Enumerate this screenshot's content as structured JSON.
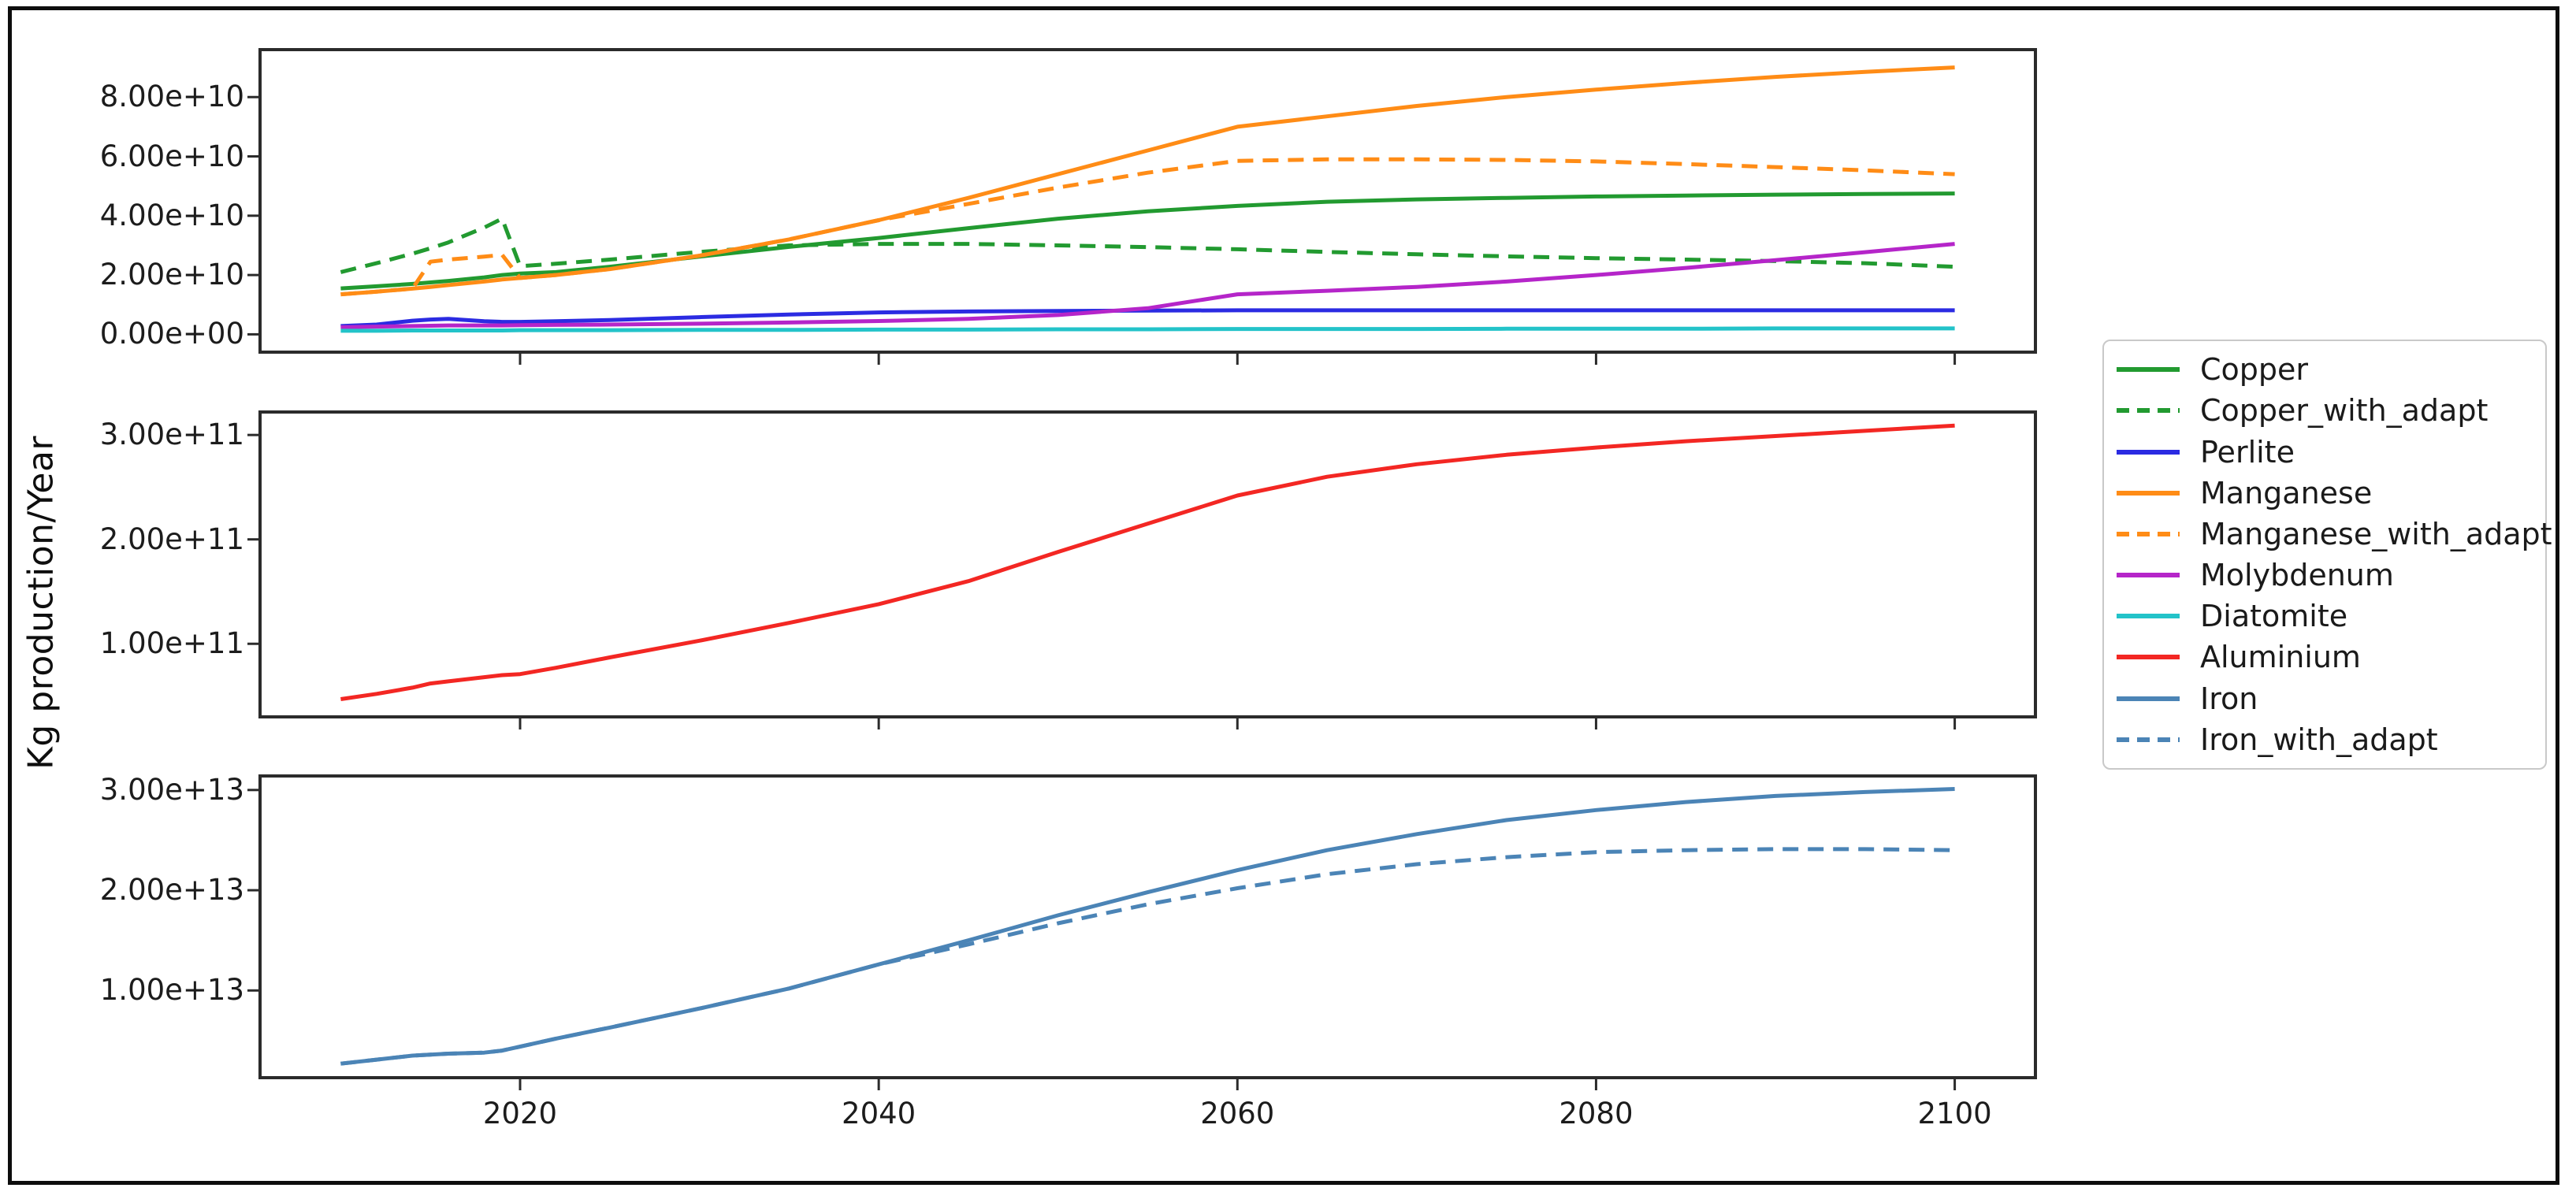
{
  "figure": {
    "ylabel": "Kg production/Year",
    "background_color": "#ffffff",
    "axis_color": "#2b2b2b",
    "tick_label_color": "#1c1c1c"
  },
  "legend": {
    "position": "right",
    "entries": [
      {
        "label": "Copper",
        "color": "#229a30",
        "dash": false
      },
      {
        "label": "Copper_with_adapt",
        "color": "#229a30",
        "dash": true
      },
      {
        "label": "Perlite",
        "color": "#2b2be2",
        "dash": false
      },
      {
        "label": "Manganese",
        "color": "#ff8c16",
        "dash": false
      },
      {
        "label": "Manganese_with_adapt",
        "color": "#ff8c16",
        "dash": true
      },
      {
        "label": "Molybdenum",
        "color": "#b525c9",
        "dash": false
      },
      {
        "label": "Diatomite",
        "color": "#23c3c9",
        "dash": false
      },
      {
        "label": "Aluminium",
        "color": "#f32723",
        "dash": false
      },
      {
        "label": "Iron",
        "color": "#4b84b6",
        "dash": false
      },
      {
        "label": "Iron_with_adapt",
        "color": "#4b84b6",
        "dash": true
      }
    ]
  },
  "chart_data": {
    "type": "line",
    "title": "",
    "xlabel": "",
    "ylabel": "Kg production/Year",
    "x_axis": {
      "range": [
        2005.5,
        2104.5
      ],
      "ticks": [
        2020,
        2040,
        2060,
        2080,
        2100
      ],
      "tick_labels": [
        "2020",
        "2040",
        "2060",
        "2080",
        "2100"
      ]
    },
    "years": [
      2010,
      2012,
      2014,
      2015,
      2016,
      2018,
      2019,
      2020,
      2022,
      2025,
      2030,
      2035,
      2040,
      2045,
      2050,
      2055,
      2060,
      2065,
      2070,
      2075,
      2080,
      2085,
      2090,
      2095,
      2100
    ],
    "subplots": [
      {
        "name": "top-panel",
        "unit": "kg/year",
        "scale": 10000000000.0,
        "ylim": [
          -0.6,
          9.6
        ],
        "yticks": [
          {
            "value": 0,
            "label": "0.00e+00"
          },
          {
            "value": 2,
            "label": "2.00e+10"
          },
          {
            "value": 4,
            "label": "4.00e+10"
          },
          {
            "value": 6,
            "label": "6.00e+10"
          },
          {
            "value": 8,
            "label": "8.00e+10"
          }
        ],
        "series": [
          {
            "name": "Copper",
            "color": "#229a30",
            "dash": false,
            "values": [
              1.55,
              1.62,
              1.7,
              1.75,
              1.8,
              1.92,
              2.0,
              2.05,
              2.1,
              2.28,
              2.62,
              2.95,
              3.25,
              3.58,
              3.9,
              4.15,
              4.33,
              4.47,
              4.55,
              4.6,
              4.65,
              4.68,
              4.71,
              4.73,
              4.75
            ]
          },
          {
            "name": "Copper_with_adapt",
            "color": "#229a30",
            "dash": true,
            "values": [
              2.1,
              2.4,
              2.72,
              2.9,
              3.1,
              3.6,
              3.9,
              2.3,
              2.38,
              2.52,
              2.78,
              3.0,
              3.05,
              3.05,
              3.0,
              2.94,
              2.87,
              2.78,
              2.7,
              2.63,
              2.57,
              2.52,
              2.47,
              2.4,
              2.28
            ]
          },
          {
            "name": "Perlite",
            "color": "#2b2be2",
            "dash": false,
            "values": [
              0.28,
              0.33,
              0.46,
              0.5,
              0.52,
              0.44,
              0.42,
              0.42,
              0.44,
              0.48,
              0.58,
              0.67,
              0.74,
              0.77,
              0.79,
              0.8,
              0.81,
              0.81,
              0.81,
              0.81,
              0.81,
              0.81,
              0.81,
              0.81,
              0.81
            ]
          },
          {
            "name": "Manganese",
            "color": "#ff8c16",
            "dash": false,
            "values": [
              1.35,
              1.44,
              1.54,
              1.6,
              1.66,
              1.78,
              1.85,
              1.9,
              2.0,
              2.2,
              2.65,
              3.2,
              3.85,
              4.6,
              5.4,
              6.2,
              7.0,
              7.35,
              7.7,
              8.0,
              8.25,
              8.48,
              8.68,
              8.85,
              9.0
            ]
          },
          {
            "name": "Manganese_with_adapt",
            "color": "#ff8c16",
            "dash": true,
            "values": [
              1.35,
              1.44,
              1.54,
              2.45,
              2.52,
              2.62,
              2.68,
              1.9,
              2.0,
              2.2,
              2.65,
              3.2,
              3.85,
              4.4,
              4.95,
              5.45,
              5.85,
              5.9,
              5.9,
              5.88,
              5.83,
              5.74,
              5.64,
              5.53,
              5.4
            ]
          },
          {
            "name": "Molybdenum",
            "color": "#b525c9",
            "dash": false,
            "values": [
              0.24,
              0.26,
              0.28,
              0.29,
              0.3,
              0.3,
              0.3,
              0.31,
              0.32,
              0.33,
              0.36,
              0.4,
              0.45,
              0.52,
              0.65,
              0.88,
              1.35,
              1.47,
              1.6,
              1.78,
              2.0,
              2.24,
              2.5,
              2.77,
              3.05
            ]
          },
          {
            "name": "Diatomite",
            "color": "#23c3c9",
            "dash": false,
            "values": [
              0.12,
              0.12,
              0.13,
              0.13,
              0.13,
              0.13,
              0.13,
              0.14,
              0.14,
              0.14,
              0.15,
              0.15,
              0.16,
              0.16,
              0.17,
              0.17,
              0.18,
              0.18,
              0.18,
              0.19,
              0.19,
              0.19,
              0.2,
              0.2,
              0.2
            ]
          }
        ]
      },
      {
        "name": "middle-panel",
        "unit": "kg/year",
        "scale": 100000000000.0,
        "ylim": [
          0.3,
          3.22
        ],
        "yticks": [
          {
            "value": 1,
            "label": "1.00e+11"
          },
          {
            "value": 2,
            "label": "2.00e+11"
          },
          {
            "value": 3,
            "label": "3.00e+11"
          }
        ],
        "series": [
          {
            "name": "Aluminium",
            "color": "#f32723",
            "dash": false,
            "values": [
              0.47,
              0.52,
              0.58,
              0.62,
              0.64,
              0.68,
              0.7,
              0.71,
              0.77,
              0.87,
              1.03,
              1.2,
              1.38,
              1.6,
              1.88,
              2.15,
              2.42,
              2.6,
              2.72,
              2.81,
              2.88,
              2.94,
              2.99,
              3.04,
              3.09
            ]
          }
        ]
      },
      {
        "name": "bottom-panel",
        "unit": "kg/year",
        "scale": 10000000000000.0,
        "ylim": [
          0.13,
          3.14
        ],
        "yticks": [
          {
            "value": 1,
            "label": "1.00e+13"
          },
          {
            "value": 2,
            "label": "2.00e+13"
          },
          {
            "value": 3,
            "label": "3.00e+13"
          }
        ],
        "series": [
          {
            "name": "Iron",
            "color": "#4b84b6",
            "dash": false,
            "values": [
              0.27,
              0.31,
              0.35,
              0.36,
              0.37,
              0.38,
              0.4,
              0.44,
              0.52,
              0.63,
              0.82,
              1.02,
              1.26,
              1.5,
              1.75,
              1.98,
              2.2,
              2.4,
              2.56,
              2.7,
              2.8,
              2.88,
              2.94,
              2.98,
              3.01
            ]
          },
          {
            "name": "Iron_with_adapt",
            "color": "#4b84b6",
            "dash": true,
            "values": [
              0.27,
              0.31,
              0.35,
              0.36,
              0.37,
              0.38,
              0.4,
              0.44,
              0.52,
              0.63,
              0.82,
              1.02,
              1.26,
              1.46,
              1.67,
              1.86,
              2.02,
              2.16,
              2.26,
              2.33,
              2.38,
              2.4,
              2.41,
              2.41,
              2.4
            ]
          }
        ]
      }
    ],
    "legend_position": "center right, outside axes",
    "grid": false
  }
}
